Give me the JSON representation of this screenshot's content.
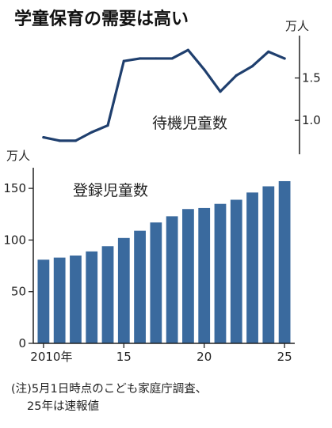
{
  "title": "学童保育の需要は高い",
  "note": {
    "line1": "(注)5月1日時点のこども家庭庁調査、",
    "line2": "25年は速報値"
  },
  "chart_data": [
    {
      "type": "line",
      "series_label": "待機児童数",
      "unit": "万人",
      "x": [
        2010,
        2011,
        2012,
        2013,
        2014,
        2015,
        2016,
        2017,
        2018,
        2019,
        2020,
        2021,
        2022,
        2023,
        2024,
        2025
      ],
      "values": [
        0.8,
        0.76,
        0.76,
        0.86,
        0.94,
        1.7,
        1.73,
        1.73,
        1.73,
        1.83,
        1.6,
        1.34,
        1.53,
        1.64,
        1.81,
        1.73
      ],
      "y_ticks": [
        "1.0",
        "1.5"
      ],
      "ylim": [
        0.6,
        2.0
      ],
      "color": "#1f3f6e"
    },
    {
      "type": "bar",
      "series_label": "登録児童数",
      "unit": "万人",
      "x": [
        2010,
        2011,
        2012,
        2013,
        2014,
        2015,
        2016,
        2017,
        2018,
        2019,
        2020,
        2021,
        2022,
        2023,
        2024,
        2025
      ],
      "values": [
        81,
        83,
        85,
        89,
        94,
        102,
        109,
        117,
        123,
        130,
        131,
        135,
        139,
        146,
        152,
        157
      ],
      "y_ticks": [
        "0",
        "50",
        "100",
        "150"
      ],
      "ylim": [
        0,
        170
      ],
      "x_ticks": [
        "2010年",
        "15",
        "20",
        "25"
      ],
      "color": "#3a6a9e"
    }
  ]
}
